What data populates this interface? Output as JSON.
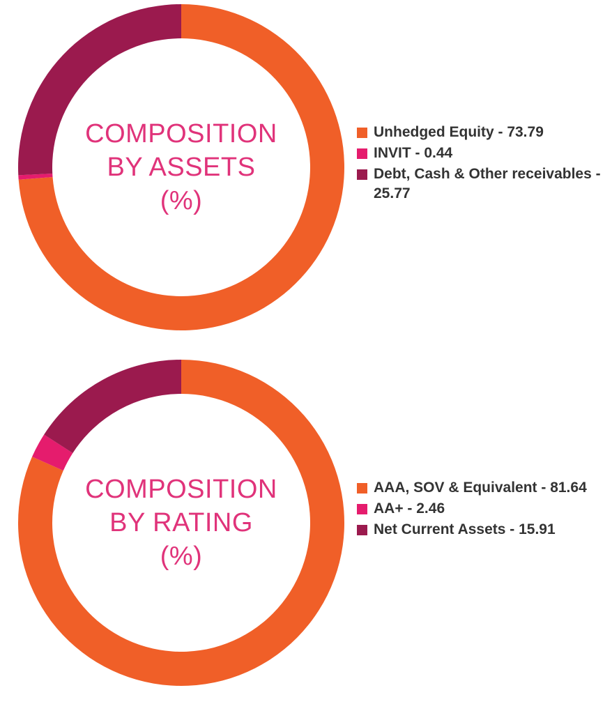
{
  "palette": {
    "orange": "#f05f28",
    "pink": "#e51c6d",
    "maroon": "#9b1a4e",
    "title_color": "#e0337a",
    "legend_text": "#333333"
  },
  "chart_data": [
    {
      "type": "pie",
      "variant": "donut",
      "title_lines": [
        "COMPOSITION",
        "BY ASSETS",
        "(%)"
      ],
      "legend_position": "right",
      "slices": [
        {
          "label": "Unhedged Equity - 73.79",
          "name": "Unhedged Equity",
          "value": 73.79,
          "color": "#f05f28"
        },
        {
          "label": "INVIT - 0.44",
          "name": "INVIT",
          "value": 0.44,
          "color": "#e51c6d"
        },
        {
          "label": "Debt, Cash & Other receivables - 25.77",
          "name": "Debt, Cash & Other receivables",
          "value": 25.77,
          "color": "#9b1a4e"
        }
      ]
    },
    {
      "type": "pie",
      "variant": "donut",
      "title_lines": [
        "COMPOSITION",
        "BY RATING",
        "(%)"
      ],
      "legend_position": "right",
      "slices": [
        {
          "label": "AAA, SOV & Equivalent - 81.64",
          "name": "AAA, SOV & Equivalent",
          "value": 81.64,
          "color": "#f05f28"
        },
        {
          "label": "AA+ - 2.46",
          "name": "AA+",
          "value": 2.46,
          "color": "#e51c6d"
        },
        {
          "label": "Net Current Assets - 15.91",
          "name": "Net Current Assets",
          "value": 15.91,
          "color": "#9b1a4e"
        }
      ]
    }
  ]
}
